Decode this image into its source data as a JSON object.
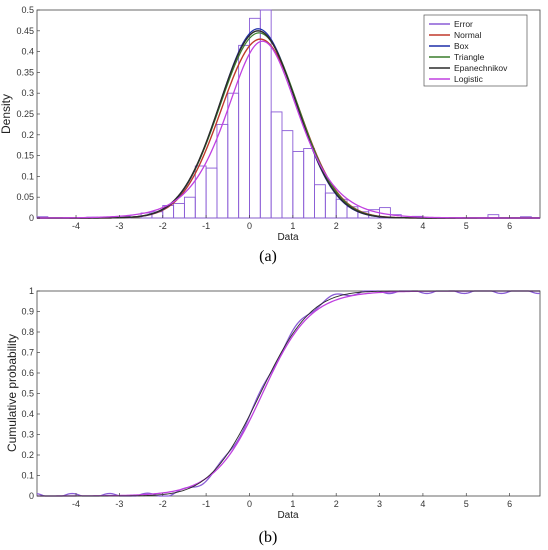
{
  "colors": {
    "error": "#8a5cd6",
    "normal": "#c0392b",
    "box": "#1f2fa8",
    "triangle": "#3a7d2c",
    "epanechnikov": "#2b2b2b",
    "logistic": "#c040e0",
    "hist_edge": "#8a5cd6"
  },
  "chart_data": [
    {
      "type": "bar",
      "panel_label": "(a)",
      "xlabel": "Data",
      "ylabel": "Density",
      "xlim": [
        -4.9,
        6.7
      ],
      "ylim": [
        0,
        0.5
      ],
      "xticks": [
        -4,
        -3,
        -2,
        -1,
        0,
        1,
        2,
        3,
        4,
        5,
        6
      ],
      "yticks": [
        0,
        0.05,
        0.1,
        0.15,
        0.2,
        0.25,
        0.3,
        0.35,
        0.4,
        0.45,
        0.5
      ],
      "ytick_labels": [
        "0",
        "0.05",
        "0.1",
        "0.15",
        "0.2",
        "0.25",
        "0.3",
        "0.35",
        "0.4",
        "0.45",
        "0.5"
      ],
      "grid": false,
      "legend_position": "top-right",
      "legend": [
        "Error",
        "Normal",
        "Box",
        "Triangle",
        "Epanechnikov",
        "Logistic"
      ],
      "histogram": {
        "bin_width": 0.25,
        "bins": [
          {
            "start": -4.9,
            "value": 0.003
          },
          {
            "start": -3.75,
            "value": 0.002
          },
          {
            "start": -3.0,
            "value": 0.004
          },
          {
            "start": -2.5,
            "value": 0.012
          },
          {
            "start": -2.25,
            "value": 0.015
          },
          {
            "start": -2.0,
            "value": 0.03
          },
          {
            "start": -1.75,
            "value": 0.035
          },
          {
            "start": -1.5,
            "value": 0.05
          },
          {
            "start": -1.25,
            "value": 0.125
          },
          {
            "start": -1.0,
            "value": 0.12
          },
          {
            "start": -0.75,
            "value": 0.225
          },
          {
            "start": -0.5,
            "value": 0.3
          },
          {
            "start": -0.25,
            "value": 0.415
          },
          {
            "start": 0.0,
            "value": 0.48
          },
          {
            "start": 0.25,
            "value": 0.5
          },
          {
            "start": 0.5,
            "value": 0.255
          },
          {
            "start": 0.75,
            "value": 0.21
          },
          {
            "start": 1.0,
            "value": 0.16
          },
          {
            "start": 1.25,
            "value": 0.167
          },
          {
            "start": 1.5,
            "value": 0.08
          },
          {
            "start": 1.75,
            "value": 0.06
          },
          {
            "start": 2.0,
            "value": 0.045
          },
          {
            "start": 2.25,
            "value": 0.027
          },
          {
            "start": 2.5,
            "value": 0.015
          },
          {
            "start": 2.75,
            "value": 0.02
          },
          {
            "start": 3.0,
            "value": 0.025
          },
          {
            "start": 3.25,
            "value": 0.008
          },
          {
            "start": 3.75,
            "value": 0.004
          },
          {
            "start": 5.5,
            "value": 0.008
          },
          {
            "start": 6.25,
            "value": 0.003
          }
        ]
      },
      "density_curves": [
        {
          "name": "Normal",
          "mu": 0.25,
          "sigma": 0.9,
          "peak": 0.43
        },
        {
          "name": "Box",
          "mu": 0.2,
          "sigma": 0.88,
          "peak": 0.455
        },
        {
          "name": "Triangle",
          "mu": 0.22,
          "sigma": 0.9,
          "peak": 0.445
        },
        {
          "name": "Epanechnikov",
          "mu": 0.2,
          "sigma": 0.89,
          "peak": 0.45
        },
        {
          "name": "Logistic",
          "mu": 0.3,
          "scale": 0.55,
          "peak": 0.425
        }
      ]
    },
    {
      "type": "line",
      "panel_label": "(b)",
      "xlabel": "Data",
      "ylabel": "Cumulative probability",
      "xlim": [
        -4.9,
        6.7
      ],
      "ylim": [
        0,
        1
      ],
      "xticks": [
        -4,
        -3,
        -2,
        -1,
        0,
        1,
        2,
        3,
        4,
        5,
        6
      ],
      "yticks": [
        0,
        0.1,
        0.2,
        0.3,
        0.4,
        0.5,
        0.6,
        0.7,
        0.8,
        0.9,
        1
      ],
      "ytick_labels": [
        "0",
        "0.1",
        "0.2",
        "0.3",
        "0.4",
        "0.5",
        "0.6",
        "0.7",
        "0.8",
        "0.9",
        "1"
      ],
      "grid": false,
      "series": [
        {
          "curve": "empirical",
          "mu": 0.25,
          "sigma": 0.9
        },
        {
          "curve": "logistic",
          "mu": 0.3,
          "scale": 0.55
        },
        {
          "curve": "normal",
          "mu": 0.25,
          "sigma": 0.92
        }
      ]
    }
  ]
}
